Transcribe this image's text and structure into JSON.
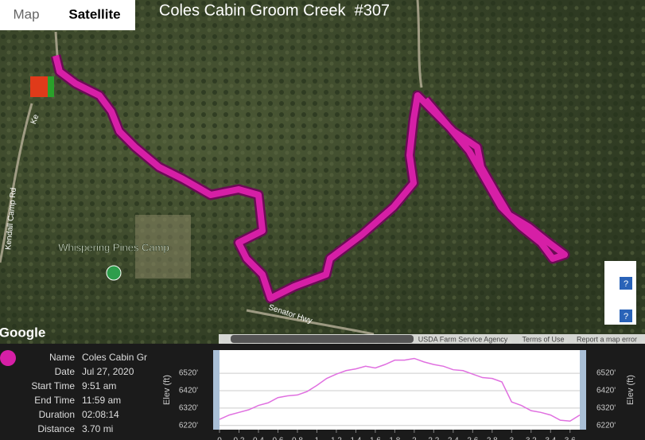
{
  "map": {
    "toggle": [
      "Map",
      "Satellite"
    ],
    "title": "Coles Cabin Groom Creek  #307",
    "place": "Whispering Pines Camp",
    "roads": [
      "Kendall Camp Rd",
      "Senator Hwy",
      "Ke"
    ],
    "logo": "Google",
    "attribution": [
      "USDA Farm Service Agency",
      "Terms of Use",
      "Report a map error"
    ],
    "help": [
      "?",
      "?"
    ]
  },
  "info": {
    "rows": [
      [
        "Name",
        "Coles Cabin Gr"
      ],
      [
        "Date",
        "Jul 27, 2020"
      ],
      [
        "Start Time",
        "9:51 am"
      ],
      [
        "End Time",
        "11:59 am"
      ],
      [
        "Duration",
        "02:08:14"
      ],
      [
        "Distance",
        "3.70 mi"
      ]
    ]
  },
  "chart_data": {
    "type": "line",
    "y_label": "Elev (ft)",
    "color": "#e070e0",
    "x": [
      0,
      0.1,
      0.2,
      0.3,
      0.4,
      0.5,
      0.6,
      0.7,
      0.8,
      0.9,
      1.0,
      1.1,
      1.2,
      1.3,
      1.4,
      1.5,
      1.6,
      1.7,
      1.8,
      1.9,
      2.0,
      2.1,
      2.2,
      2.3,
      2.4,
      2.5,
      2.6,
      2.7,
      2.8,
      2.9,
      3.0,
      3.1,
      3.2,
      3.3,
      3.4,
      3.5,
      3.6,
      3.7
    ],
    "values": [
      6255,
      6280,
      6295,
      6310,
      6335,
      6350,
      6380,
      6390,
      6395,
      6415,
      6450,
      6490,
      6515,
      6535,
      6545,
      6560,
      6550,
      6570,
      6595,
      6595,
      6605,
      6585,
      6570,
      6560,
      6540,
      6535,
      6515,
      6495,
      6490,
      6470,
      6355,
      6335,
      6305,
      6295,
      6280,
      6250,
      6245,
      6280
    ],
    "xlim": [
      0,
      3.7
    ],
    "xticks": [
      0,
      0.2,
      0.4,
      0.6,
      0.8,
      1,
      1.2,
      1.4,
      1.6,
      1.8,
      2,
      2.2,
      2.4,
      2.6,
      2.8,
      3,
      3.2,
      3.4,
      3.6
    ],
    "ylim": [
      6205,
      6630
    ],
    "yticks": [
      {
        "value": 6220,
        "label": "6220'"
      },
      {
        "value": 6320,
        "label": "6320'"
      },
      {
        "value": 6420,
        "label": "6420'"
      },
      {
        "value": 6520,
        "label": "6520'"
      }
    ],
    "grid": true
  }
}
